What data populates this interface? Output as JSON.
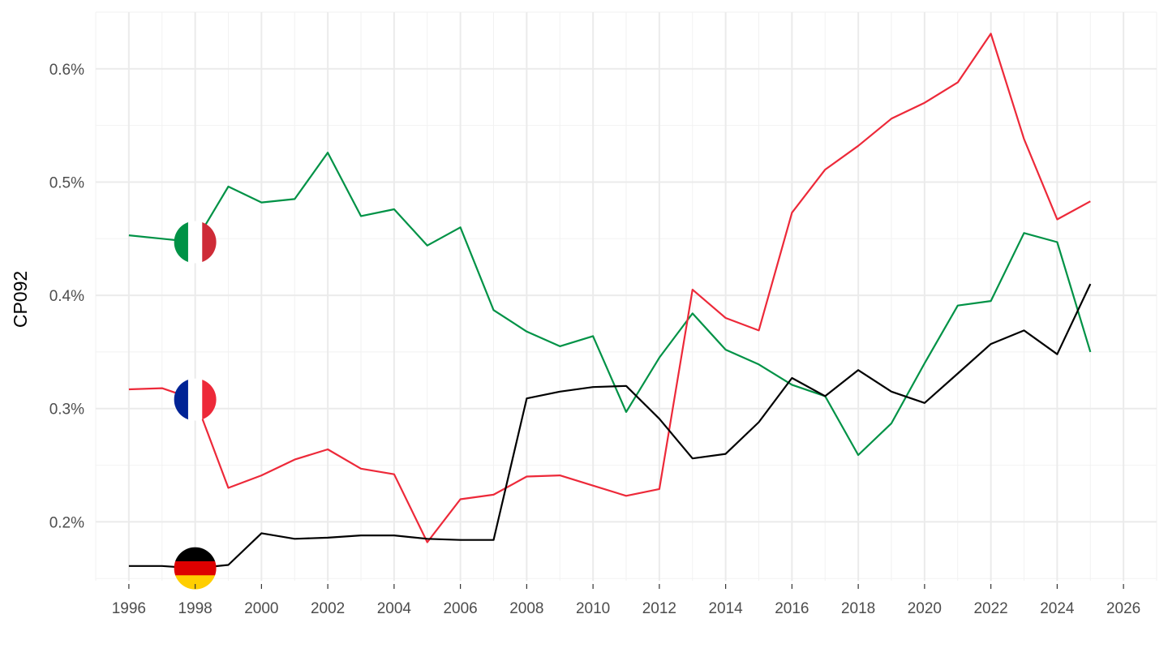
{
  "chart_data": {
    "type": "line",
    "ylabel": "CP092",
    "xlabel": "",
    "x": [
      1996,
      1997,
      1998,
      1999,
      2000,
      2001,
      2002,
      2003,
      2004,
      2005,
      2006,
      2007,
      2008,
      2009,
      2010,
      2011,
      2012,
      2013,
      2014,
      2015,
      2016,
      2017,
      2018,
      2019,
      2020,
      2021,
      2022,
      2023,
      2024,
      2025
    ],
    "xlim": [
      1995,
      2027
    ],
    "ylim": [
      0.148,
      0.65
    ],
    "x_ticks": [
      1996,
      1998,
      2000,
      2002,
      2004,
      2006,
      2008,
      2010,
      2012,
      2014,
      2016,
      2018,
      2020,
      2022,
      2024,
      2026
    ],
    "y_ticks": [
      0.2,
      0.3,
      0.4,
      0.5,
      0.6
    ],
    "y_tick_labels": [
      "0.2%",
      "0.3%",
      "0.4%",
      "0.5%",
      "0.6%"
    ],
    "grid": true,
    "legend": "flags at 1998",
    "flag_year": 1998,
    "series": [
      {
        "country": "Italy",
        "flag_icon": "italy-flag-icon",
        "color": "#009246",
        "values": [
          0.453,
          0.45,
          0.447,
          0.496,
          0.482,
          0.485,
          0.526,
          0.47,
          0.476,
          0.444,
          0.46,
          0.387,
          0.368,
          0.355,
          0.364,
          0.297,
          0.345,
          0.384,
          0.352,
          0.339,
          0.321,
          0.311,
          0.259,
          0.287,
          0.34,
          0.391,
          0.395,
          0.455,
          0.447,
          0.35
        ]
      },
      {
        "country": "France",
        "flag_icon": "france-flag-icon",
        "color": "#ed2939",
        "values": [
          0.317,
          0.318,
          0.308,
          0.23,
          0.241,
          0.255,
          0.264,
          0.247,
          0.242,
          0.182,
          0.22,
          0.224,
          0.24,
          0.241,
          0.232,
          0.223,
          0.229,
          0.405,
          0.38,
          0.369,
          0.473,
          0.511,
          0.532,
          0.556,
          0.57,
          0.588,
          0.631,
          0.538,
          0.467,
          0.483
        ]
      },
      {
        "country": "Germany",
        "flag_icon": "germany-flag-icon",
        "color": "#000000",
        "values": [
          0.161,
          0.161,
          0.159,
          0.162,
          0.19,
          0.185,
          0.186,
          0.188,
          0.188,
          0.185,
          0.184,
          0.184,
          0.309,
          0.315,
          0.319,
          0.32,
          0.291,
          0.256,
          0.26,
          0.288,
          0.327,
          0.311,
          0.334,
          0.315,
          0.305,
          0.331,
          0.357,
          0.369,
          0.348,
          0.41
        ]
      }
    ]
  }
}
